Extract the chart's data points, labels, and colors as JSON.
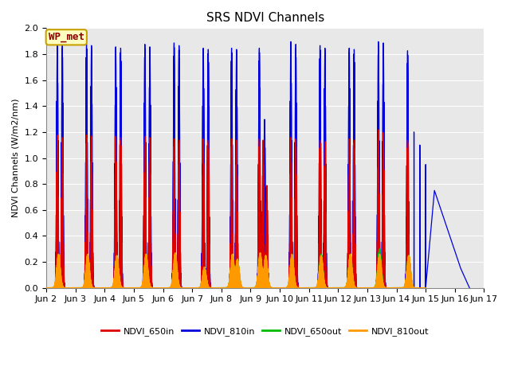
{
  "title": "SRS NDVI Channels",
  "ylabel": "NDVI Channels (W/m2/nm)",
  "ylim": [
    0.0,
    2.0
  ],
  "background_color": "#e8e8e8",
  "annotation_text": "WP_met",
  "annotation_color": "#8b0000",
  "annotation_bg": "#ffffc0",
  "annotation_border": "#c8a000",
  "colors": {
    "NDVI_650in": "#dd0000",
    "NDVI_810in": "#0000dd",
    "NDVI_650out": "#00bb00",
    "NDVI_810out": "#ff9900"
  },
  "xtick_labels": [
    "Jun 2",
    "Jun 3",
    "Jun 4",
    "Jun 5",
    "Jun 6",
    "Jun 7",
    "Jun 8",
    "Jun 9",
    "Jun 10",
    "Jun 11",
    "Jun 12",
    "Jun 13",
    "Jun 14",
    "Jun 15",
    "Jun 16",
    "Jun 17"
  ],
  "title_fontsize": 11,
  "axis_fontsize": 8,
  "legend_fontsize": 8
}
